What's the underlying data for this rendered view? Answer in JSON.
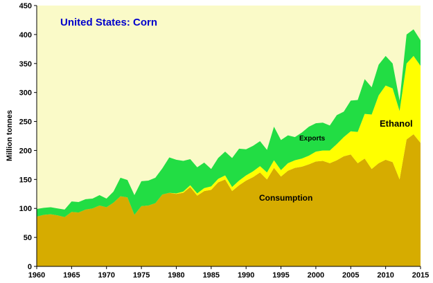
{
  "chart_data": {
    "type": "area",
    "title": "United States:  Corn",
    "ylabel": "Million tonnes",
    "xlim": [
      1960,
      2015
    ],
    "ylim": [
      0,
      450
    ],
    "xticks": [
      1960,
      1965,
      1970,
      1975,
      1980,
      1985,
      1990,
      1995,
      2000,
      2005,
      2010,
      2015
    ],
    "yticks": [
      0,
      50,
      100,
      150,
      200,
      250,
      300,
      350,
      400,
      450
    ],
    "x": [
      1960,
      1961,
      1962,
      1963,
      1964,
      1965,
      1966,
      1967,
      1968,
      1969,
      1970,
      1971,
      1972,
      1973,
      1974,
      1975,
      1976,
      1977,
      1978,
      1979,
      1980,
      1981,
      1982,
      1983,
      1984,
      1985,
      1986,
      1987,
      1988,
      1989,
      1990,
      1991,
      1992,
      1993,
      1994,
      1995,
      1996,
      1997,
      1998,
      1999,
      2000,
      2001,
      2002,
      2003,
      2004,
      2005,
      2006,
      2007,
      2008,
      2009,
      2010,
      2011,
      2012,
      2013,
      2014,
      2015
    ],
    "series": [
      {
        "name": "Consumption",
        "values": [
          86,
          89,
          90,
          88,
          85,
          94,
          93,
          98,
          100,
          105,
          102,
          110,
          121,
          119,
          89,
          104,
          105,
          109,
          124,
          127,
          125,
          127,
          137,
          122,
          130,
          132,
          145,
          150,
          130,
          140,
          148,
          154,
          162,
          150,
          170,
          155,
          165,
          170,
          172,
          176,
          181,
          182,
          178,
          183,
          190,
          193,
          178,
          186,
          168,
          178,
          184,
          180,
          150,
          219,
          228,
          213
        ]
      },
      {
        "name": "Ethanol",
        "values": [
          0,
          0,
          0,
          0,
          0,
          0,
          0,
          0,
          0,
          0,
          0,
          0,
          0,
          0,
          0,
          0,
          0,
          0,
          0,
          0,
          1,
          2,
          3,
          4,
          5,
          6,
          6,
          7,
          7,
          8,
          9,
          10,
          11,
          12,
          13,
          11,
          13,
          13,
          14,
          15,
          17,
          18,
          22,
          28,
          33,
          40,
          54,
          77,
          94,
          117,
          128,
          127,
          118,
          131,
          135,
          133
        ]
      },
      {
        "name": "Exports",
        "values": [
          13,
          12,
          12,
          12,
          13,
          18,
          18,
          18,
          17,
          18,
          15,
          19,
          32,
          30,
          34,
          43,
          43,
          44,
          45,
          61,
          58,
          53,
          45,
          45,
          44,
          30,
          36,
          41,
          50,
          55,
          45,
          44,
          43,
          39,
          58,
          52,
          48,
          40,
          45,
          50,
          49,
          48,
          43,
          50,
          44,
          53,
          55,
          60,
          47,
          53,
          51,
          43,
          18,
          50,
          46,
          44
        ]
      }
    ],
    "annotations": [
      "Consumption",
      "Ethanol",
      "Exports"
    ],
    "colors": {
      "Consumption": "#D6AC00",
      "Ethanol": "#FFFF00",
      "Exports": "#22DD44",
      "title": "#0000CC",
      "plot_background": "#FAFAC8"
    },
    "grid": false
  }
}
